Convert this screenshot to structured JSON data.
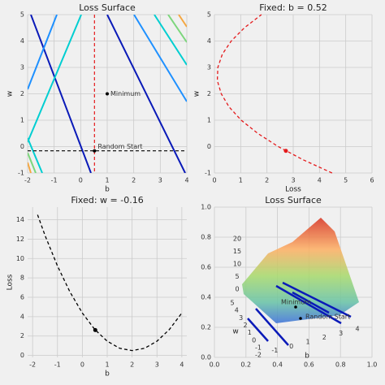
{
  "chart_data": [
    {
      "type": "contour",
      "title": "Loss Surface",
      "xlabel": "b",
      "ylabel": "w",
      "xlim": [
        -2,
        4
      ],
      "ylim": [
        -1,
        5
      ],
      "xticks": [
        -2,
        -1,
        0,
        1,
        2,
        3,
        4
      ],
      "yticks": [
        -1,
        0,
        1,
        2,
        3,
        4,
        5
      ],
      "grid": true,
      "vline": {
        "value": 0.52,
        "color": "#e41a1c"
      },
      "hline": {
        "value": -0.16,
        "color": "#000000"
      },
      "annotations": [
        {
          "text": "Minimum",
          "x": 1,
          "y": 2
        },
        {
          "text": "Random Start",
          "x": 0.52,
          "y": -0.16
        }
      ]
    },
    {
      "type": "line",
      "title": "Fixed: b = 0.52",
      "xlabel": "Loss",
      "ylabel": "w",
      "xlim": [
        0,
        6
      ],
      "ylim": [
        -1,
        5
      ],
      "xticks": [
        0,
        1,
        2,
        3,
        4,
        5,
        6
      ],
      "yticks": [
        -1,
        0,
        1,
        2,
        3,
        4,
        5
      ],
      "grid": true,
      "color": "#e41a1c",
      "x": [
        4.48,
        3.38,
        2.43,
        1.65,
        1.02,
        0.56,
        0.26,
        0.11,
        0.13,
        0.3,
        0.64,
        1.14,
        1.79
      ],
      "values": [
        -1,
        -0.5,
        0,
        0.5,
        1,
        1.5,
        2,
        2.5,
        3,
        3.5,
        4,
        4.5,
        5
      ],
      "marker": {
        "x": 2.72,
        "y": -0.16
      }
    },
    {
      "type": "line",
      "title": "Fixed: w = -0.16",
      "xlabel": "b",
      "ylabel": "Loss",
      "xlim": [
        -2.2,
        4.2
      ],
      "ylim": [
        -0.2,
        15.3
      ],
      "xticks": [
        -2,
        -1,
        0,
        1,
        2,
        3,
        4
      ],
      "yticks": [
        0,
        2,
        4,
        6,
        8,
        10,
        12,
        14
      ],
      "grid": true,
      "color": "#000000",
      "x": [
        -1.8,
        -1.5,
        -1,
        -0.5,
        0,
        0.5,
        1,
        1.5,
        2,
        2.5,
        3,
        3.5,
        4
      ],
      "values": [
        14.51,
        12.38,
        9.23,
        6.56,
        4.38,
        2.68,
        1.47,
        0.74,
        0.5,
        0.74,
        1.47,
        2.68,
        4.38
      ],
      "marker": {
        "x": 0.52,
        "y": 2.62
      }
    },
    {
      "type": "surface3d",
      "title": "Loss Surface",
      "xlabel": "b",
      "ylabel": "w",
      "xlim": [
        0,
        1
      ],
      "ylim": [
        0,
        1
      ],
      "xticks": [
        {
          "value": 0,
          "label": "0.0"
        },
        {
          "value": 0.2,
          "label": "0.2"
        },
        {
          "value": 0.4,
          "label": "0.4"
        },
        {
          "value": 0.6,
          "label": "0.6"
        },
        {
          "value": 0.8,
          "label": "0.8"
        },
        {
          "value": 1,
          "label": "1.0"
        }
      ],
      "yticks": [
        {
          "value": 0,
          "label": "0.0"
        },
        {
          "value": 0.2,
          "label": "0.2"
        },
        {
          "value": 0.4,
          "label": "0.4"
        },
        {
          "value": 0.6,
          "label": "0.6"
        },
        {
          "value": 0.8,
          "label": "0.8"
        },
        {
          "value": 1,
          "label": "1.0"
        }
      ],
      "bticks": [
        -2,
        -1,
        0,
        1,
        2,
        3,
        4
      ],
      "wticks": [
        5,
        4,
        3,
        2,
        1,
        0,
        -1
      ],
      "zticks": [
        0,
        5,
        10,
        15,
        20
      ],
      "annotations": [
        {
          "text": "Minimum"
        },
        {
          "text": "Random Start"
        }
      ]
    }
  ]
}
